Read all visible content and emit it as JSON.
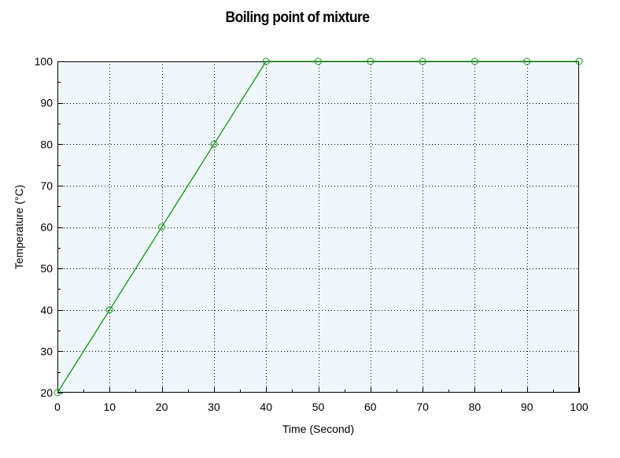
{
  "chart_data": {
    "type": "line",
    "title": "Boiling point of mixture",
    "xlabel": "Time (Second)",
    "ylabel": "Temperature (°C)",
    "xlim": [
      0,
      100
    ],
    "ylim": [
      20,
      100
    ],
    "xticks": [
      0,
      10,
      20,
      30,
      40,
      50,
      60,
      70,
      80,
      90,
      100
    ],
    "yticks": [
      20,
      30,
      40,
      50,
      60,
      70,
      80,
      90,
      100
    ],
    "grid": true,
    "legend": "none",
    "colors": {
      "line": "#119911",
      "plot_background": "#f0f7fc"
    },
    "series": [
      {
        "x": [
          0,
          10,
          20,
          30,
          40,
          50,
          60,
          70,
          80,
          90,
          100
        ],
        "y": [
          20,
          40,
          60,
          80,
          100,
          100,
          100,
          100,
          100,
          100,
          100
        ]
      }
    ]
  }
}
